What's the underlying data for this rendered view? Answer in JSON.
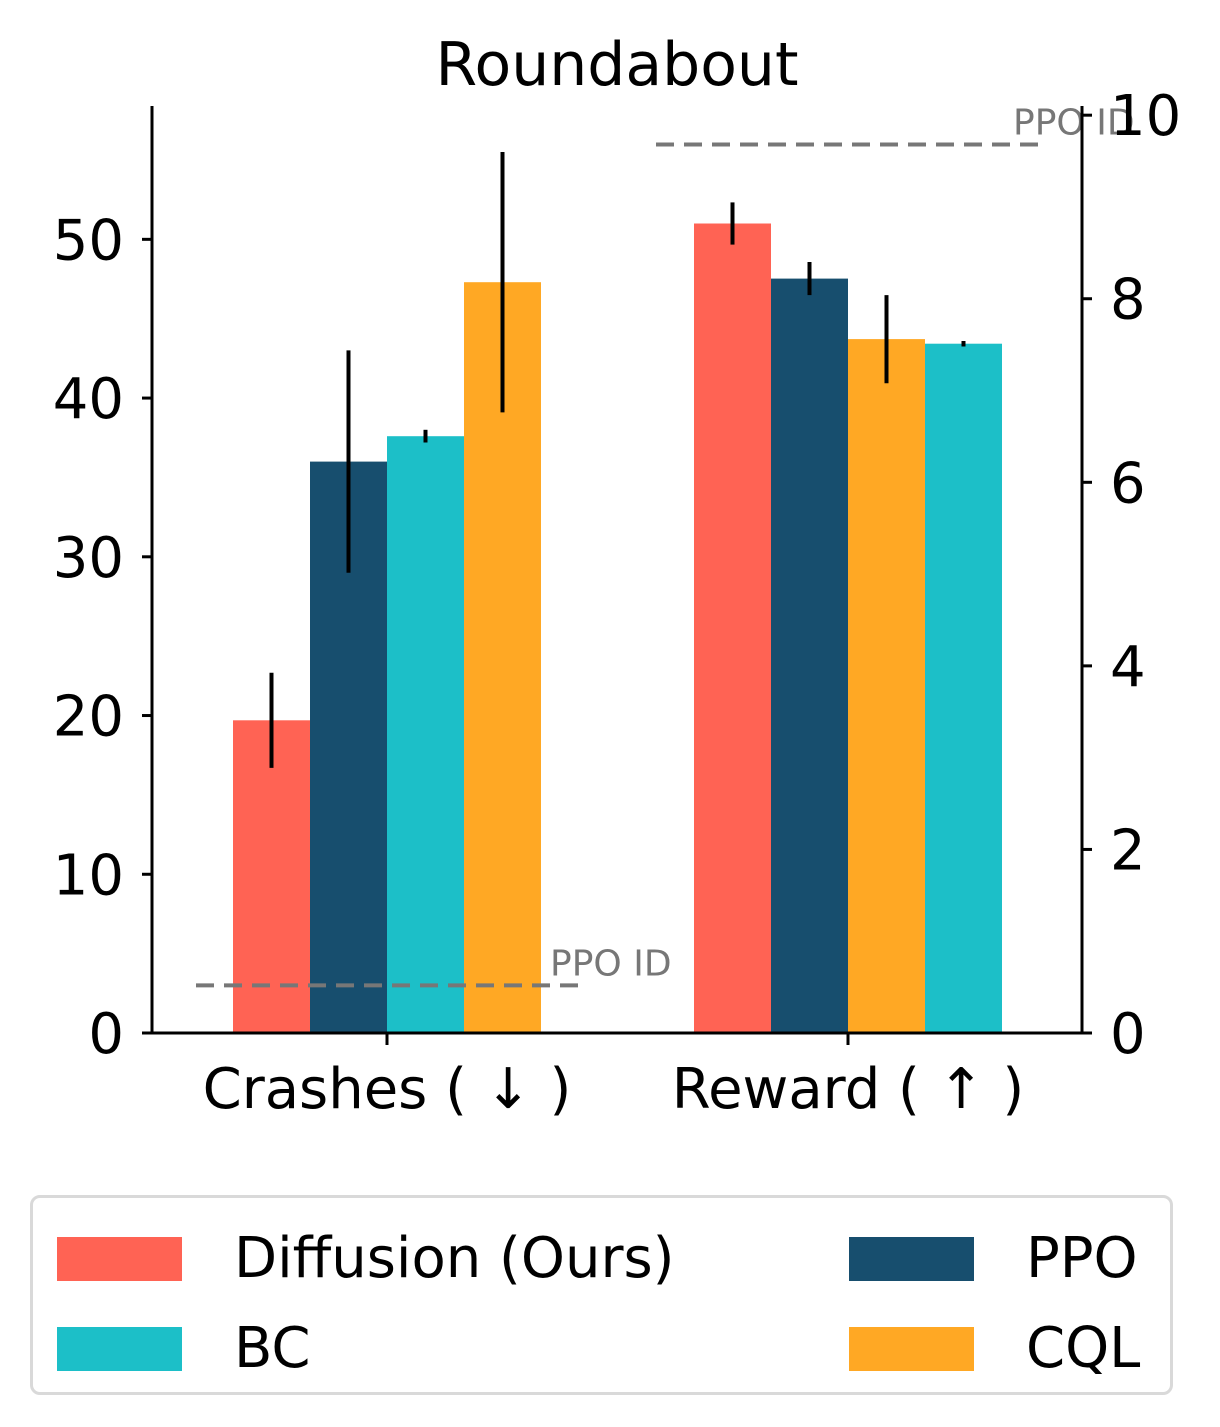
{
  "chart_data": {
    "type": "bar",
    "title": "Roundabout",
    "categories": [
      "Crashes ( ↓ )",
      "Reward ( ↑ )"
    ],
    "series": [
      {
        "name": "Diffusion (Ours)",
        "color": "#ff6354",
        "crashes": 19.7,
        "crashes_err": 3.0,
        "reward": 8.82,
        "reward_err": 0.23
      },
      {
        "name": "PPO",
        "color": "#174e6e",
        "crashes": 36.0,
        "crashes_err": 7.0,
        "reward": 8.22,
        "reward_err": 0.18
      },
      {
        "name": "BC",
        "color": "#1cbfc8",
        "crashes": 37.6,
        "crashes_err": 0.4,
        "reward": 7.51,
        "reward_err": 0.03
      },
      {
        "name": "CQL",
        "color": "#ffa824",
        "crashes": 47.3,
        "crashes_err": 8.2,
        "reward": 7.56,
        "reward_err": 0.48
      }
    ],
    "left_axis": {
      "ylim": [
        0,
        58.4
      ],
      "ticks": [
        0,
        10,
        20,
        30,
        40,
        50
      ]
    },
    "right_axis": {
      "ylim": [
        0,
        10.1
      ],
      "ticks": [
        0,
        2,
        4,
        6,
        8,
        10
      ]
    },
    "reference_lines": [
      {
        "label": "PPO ID",
        "axis": "left",
        "category": 0,
        "value": 3.0,
        "color": "#777777"
      },
      {
        "label": "PPO ID",
        "axis": "right",
        "category": 1,
        "value": 9.68,
        "color": "#777777"
      }
    ],
    "legend": {
      "position": "bottom",
      "columns": 2
    }
  }
}
